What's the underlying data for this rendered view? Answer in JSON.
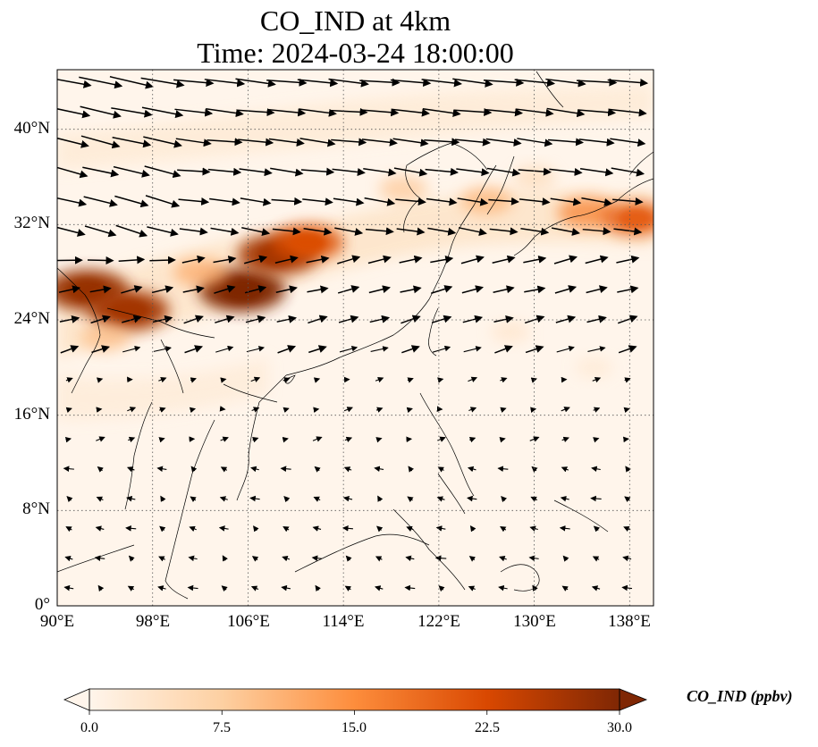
{
  "title": {
    "line1": "CO_IND at 4km",
    "line2": "Time: 2024-03-24 18:00:00"
  },
  "map": {
    "variable": "CO_IND",
    "height": "4km",
    "time": "2024-03-24 18:00:00",
    "lon_range": [
      90,
      140
    ],
    "lat_range": [
      0,
      45
    ],
    "lat_gridlines": [
      0,
      8,
      16,
      24,
      32,
      40
    ],
    "lon_gridlines": [
      90,
      98,
      106,
      114,
      122,
      130,
      138
    ],
    "lat_labels": [
      "0°",
      "8°N",
      "16°N",
      "24°N",
      "32°N",
      "40°N"
    ],
    "lon_labels": [
      "90°E",
      "98°E",
      "106°E",
      "114°E",
      "122°E",
      "130°E",
      "138°E"
    ],
    "grid": true,
    "gridline_style": "dotted"
  },
  "colorbar": {
    "label": "CO_IND (ppbv)",
    "min": 0.0,
    "max": 30.0,
    "ticks": [
      "0.0",
      "7.5",
      "15.0",
      "22.5",
      "30.0"
    ],
    "colormap": [
      "#fff5eb",
      "#fdd0a2",
      "#fd8d3c",
      "#d94801",
      "#7f2704"
    ],
    "extend": "both"
  },
  "plumes": [
    {
      "lon": 105.5,
      "lat": 26.5,
      "value": 30
    },
    {
      "lon": 108.5,
      "lat": 29.5,
      "value": 27
    },
    {
      "lon": 111.0,
      "lat": 30.5,
      "value": 22
    },
    {
      "lon": 92.5,
      "lat": 26.5,
      "value": 28
    },
    {
      "lon": 96.0,
      "lat": 24.8,
      "value": 27
    },
    {
      "lon": 94.0,
      "lat": 22.5,
      "value": 10
    },
    {
      "lon": 102.0,
      "lat": 28.0,
      "value": 12
    },
    {
      "lon": 119.0,
      "lat": 35.0,
      "value": 9
    },
    {
      "lon": 126.0,
      "lat": 34.0,
      "value": 11
    },
    {
      "lon": 134.5,
      "lat": 33.0,
      "value": 16
    },
    {
      "lon": 138.5,
      "lat": 32.5,
      "value": 20
    },
    {
      "lon": 130.0,
      "lat": 36.0,
      "value": 6
    },
    {
      "lon": 128.0,
      "lat": 23.0,
      "value": 4
    },
    {
      "lon": 135.0,
      "lat": 20.0,
      "value": 3
    }
  ]
}
